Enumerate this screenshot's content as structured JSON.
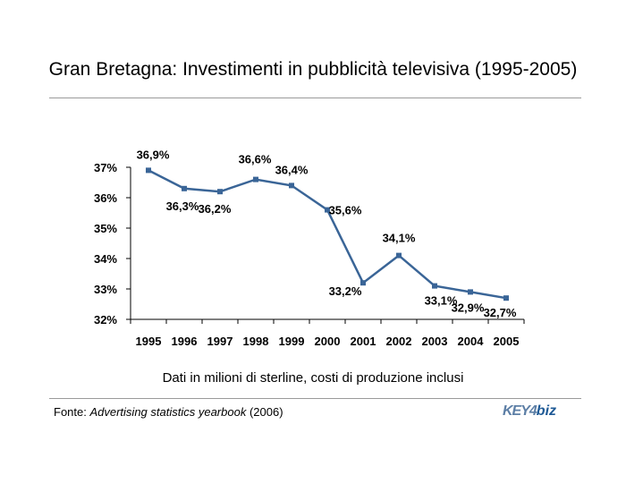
{
  "title": "Gran Bretagna: Investimenti in pubblicità televisiva (1995-2005)",
  "note": "Dati in milioni di sterline, costi di produzione inclusi",
  "source": {
    "prefix": "Fonte: ",
    "publication": "Advertising statistics yearbook",
    "suffix": " (2006)"
  },
  "logo": {
    "part1": "KEY4",
    "part2": "biz"
  },
  "colors": {
    "series": "#3a6597",
    "axis": "#000000",
    "rule": "#9a9a9a"
  },
  "chart_data": {
    "type": "line",
    "title": "",
    "x": [
      "1995",
      "1996",
      "1997",
      "1998",
      "1999",
      "2000",
      "2001",
      "2002",
      "2003",
      "2004",
      "2005"
    ],
    "series": [
      {
        "values": [
          36.9,
          36.3,
          36.2,
          36.6,
          36.4,
          35.6,
          33.2,
          34.1,
          33.1,
          32.9,
          32.7
        ],
        "labels": [
          "36,9%",
          "36,3%",
          "36,2%",
          "36,6%",
          "36,4%",
          "35,6%",
          "33,2%",
          "34,1%",
          "33,1%",
          "32,9%",
          "32,7%"
        ]
      }
    ],
    "yticks": [
      "37%",
      "36%",
      "35%",
      "34%",
      "33%",
      "32%"
    ],
    "ylim": [
      32,
      37
    ],
    "xlabel": "",
    "ylabel": "",
    "grid": false,
    "legend": "none",
    "marker": "square"
  }
}
